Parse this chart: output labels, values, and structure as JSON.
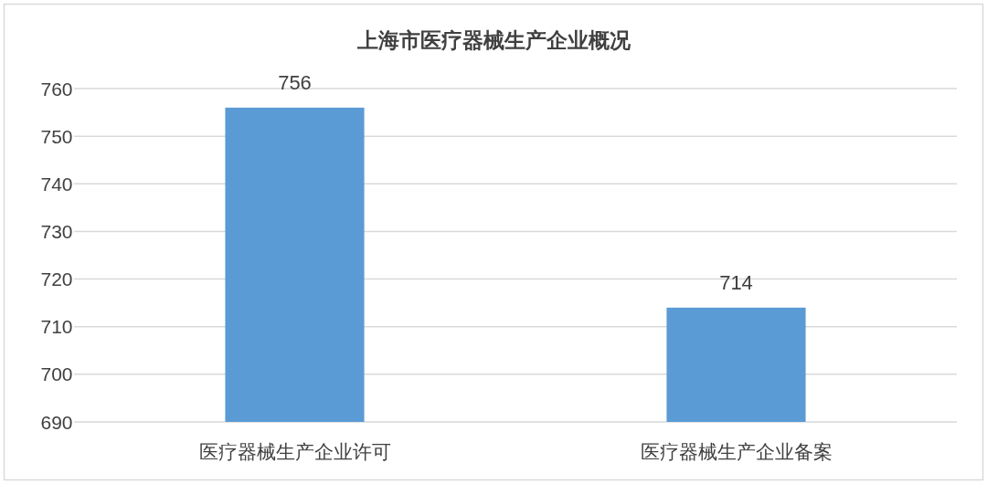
{
  "chart_data": {
    "type": "bar",
    "title": "上海市医疗器械生产企业概况",
    "categories": [
      "医疗器械生产企业许可",
      "医疗器械生产企业备案"
    ],
    "values": [
      756,
      714
    ],
    "color": "#5b9bd5",
    "ylim": [
      690,
      760
    ],
    "yticks": [
      690,
      700,
      710,
      720,
      730,
      740,
      750,
      760
    ],
    "grid": "y",
    "data_labels": true
  }
}
